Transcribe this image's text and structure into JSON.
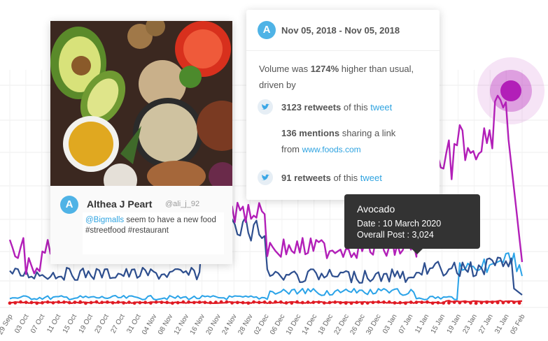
{
  "post": {
    "avatar_letter": "A",
    "author": "Althea J Peart",
    "handle": "@ali_j_92",
    "mention": "@Bigmalls",
    "text": " seem to have a new food #streetfood #restaurant"
  },
  "info": {
    "avatar_letter": "A",
    "date_range": "Nov 05, 2018 - Nov 05, 2018",
    "volume_prefix": "Volume was ",
    "volume_pct": "1274%",
    "volume_suffix": " higher than usual,",
    "driven_by": "driven by",
    "retweets1_count": "3123 retweets",
    "retweets1_mid": " of this ",
    "retweets1_link": "tweet",
    "mentions_count": "136 mentions",
    "mentions_mid": " sharing a link",
    "from_label": "from ",
    "from_link": "www.foods.com",
    "retweets2_count": "91 retweets",
    "retweets2_mid": " of this ",
    "retweets2_link": "tweet"
  },
  "tooltip": {
    "title": "Avocado",
    "date_line": "Date : 10 March 2020",
    "posts_line": "Overall Post : 3,024"
  },
  "colors": {
    "purple": "#b21fb8",
    "navy": "#2e4f8f",
    "light_blue": "#2aa3e8",
    "red": "#e01b24",
    "accent": "#4fb3e6"
  },
  "chart_data": {
    "type": "line",
    "x_ticks": [
      "29 Sep",
      "03 Oct",
      "07 Oct",
      "11 Oct",
      "15 Oct",
      "19 Oct",
      "23 Oct",
      "27 Oct",
      "31 Oct",
      "04 Nov",
      "08 Nov",
      "12 Nov",
      "16 Nov",
      "20 Nov",
      "24 Nov",
      "28 Nov",
      "02 Dec",
      "06 Dec",
      "10 Dec",
      "14 Dec",
      "18 Dec",
      "22 Dec",
      "26 Dec",
      "30 Dec",
      "03 Jan",
      "07 Jan",
      "11 Jan",
      "15 Jan",
      "19 Jan",
      "23 Jan",
      "27 Jan",
      "31 Jan",
      "05 Feb"
    ],
    "grid": true,
    "series_colors": [
      "#b21fb8",
      "#2e4f8f",
      "#2aa3e8",
      "#e01b24"
    ]
  }
}
